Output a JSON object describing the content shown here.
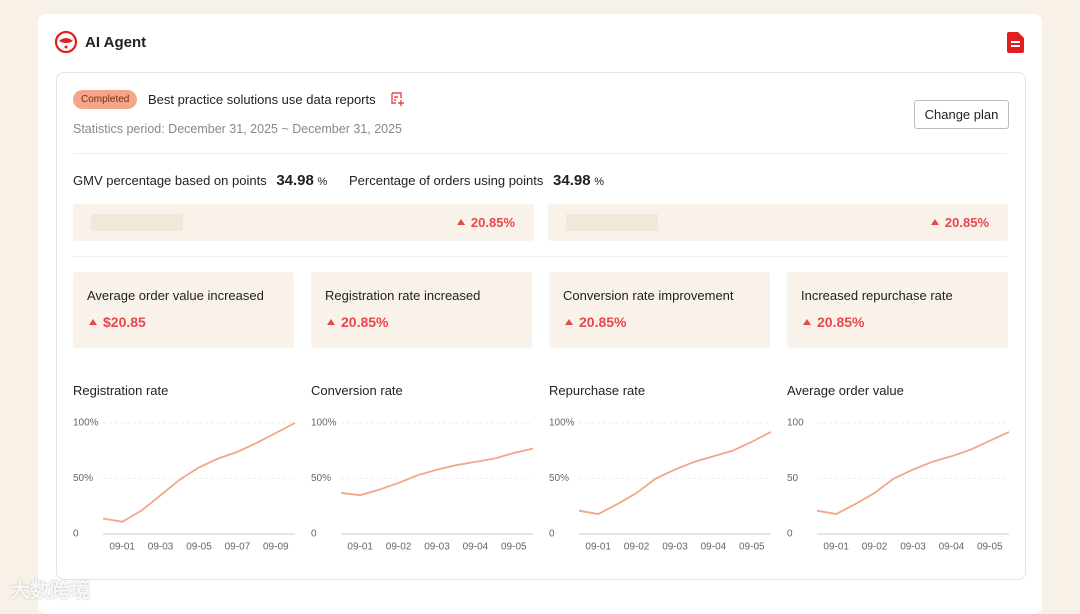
{
  "header": {
    "title": "AI Agent"
  },
  "plan": {
    "status": "Completed",
    "title": "Best practice solutions use data reports",
    "period": "Statistics period: December 31, 2025 ~ December 31, 2025",
    "button": "Change plan"
  },
  "summary": [
    {
      "label": "GMV percentage based on points",
      "value": "34.98",
      "unit": "%",
      "change": "20.85%"
    },
    {
      "label": "Percentage of orders using points",
      "value": "34.98",
      "unit": "%",
      "change": "20.85%"
    }
  ],
  "cards": [
    {
      "label": "Average order value increased",
      "value": "$20.85"
    },
    {
      "label": "Registration rate increased",
      "value": "20.85%"
    },
    {
      "label": "Conversion rate improvement",
      "value": "20.85%"
    },
    {
      "label": "Increased repurchase rate",
      "value": "20.85%"
    }
  ],
  "chart_data": [
    {
      "type": "line",
      "title": "Registration rate",
      "color": "#f0a888",
      "grid": true,
      "categories": [
        null,
        "09-01",
        null,
        "09-03",
        null,
        "09-05",
        null,
        "09-07",
        null,
        "09-09",
        null
      ],
      "values": [
        14,
        11,
        21,
        35,
        49,
        60,
        68,
        74,
        82,
        91,
        100
      ],
      "ylim": [
        0,
        100
      ],
      "yticks": [
        0,
        {
          "value": 50,
          "label": "50%"
        },
        {
          "value": 100,
          "label": "100%"
        }
      ]
    },
    {
      "type": "line",
      "title": "Conversion rate",
      "color": "#f0a888",
      "grid": true,
      "categories": [
        null,
        "09-01",
        null,
        "09-02",
        null,
        "09-03",
        null,
        "09-04",
        null,
        "09-05",
        null
      ],
      "values": [
        37,
        35,
        40,
        46,
        53,
        58,
        62,
        65,
        68,
        73,
        77
      ],
      "ylim": [
        0,
        100
      ],
      "yticks": [
        0,
        {
          "value": 50,
          "label": "50%"
        },
        {
          "value": 100,
          "label": "100%"
        }
      ]
    },
    {
      "type": "line",
      "title": "Repurchase rate",
      "color": "#f0a888",
      "grid": true,
      "categories": [
        null,
        "09-01",
        null,
        "09-02",
        null,
        "09-03",
        null,
        "09-04",
        null,
        "09-05",
        null
      ],
      "values": [
        21,
        18,
        27,
        37,
        50,
        58,
        65,
        70,
        75,
        83,
        92
      ],
      "ylim": [
        0,
        100
      ],
      "yticks": [
        0,
        {
          "value": 50,
          "label": "50%"
        },
        {
          "value": 100,
          "label": "100%"
        }
      ]
    },
    {
      "type": "line",
      "title": "Average order value",
      "color": "#f0a888",
      "grid": true,
      "categories": [
        null,
        "09-01",
        null,
        "09-02",
        null,
        "09-03",
        null,
        "09-04",
        null,
        "09-05",
        null
      ],
      "values": [
        21,
        18,
        27,
        37,
        50,
        58,
        65,
        70,
        76,
        84,
        92
      ],
      "ylim": [
        0,
        100
      ],
      "yticks": [
        0,
        50,
        100
      ]
    }
  ],
  "watermark": "大数跨境"
}
